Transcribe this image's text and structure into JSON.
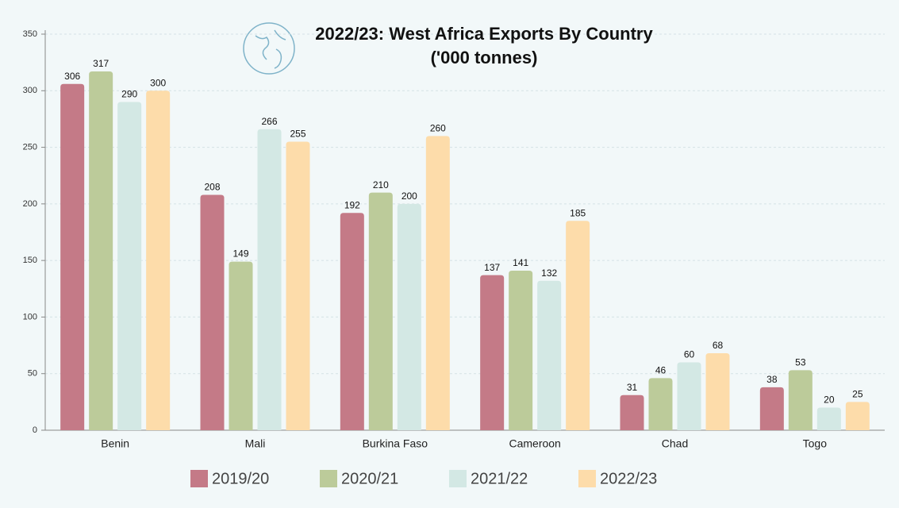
{
  "chart_data": {
    "type": "bar",
    "title": "2022/23: West Africa Exports By Country ('000 tonnes)",
    "categories": [
      "Benin",
      "Mali",
      "Burkina Faso",
      "Cameroon",
      "Chad",
      "Togo"
    ],
    "series": [
      {
        "name": "2019/20",
        "color": "#c47a87",
        "values": [
          306,
          208,
          192,
          137,
          31,
          38
        ]
      },
      {
        "name": "2020/21",
        "color": "#bccb9a",
        "values": [
          317,
          149,
          210,
          141,
          46,
          53
        ]
      },
      {
        "name": "2021/22",
        "color": "#d3e8e4",
        "values": [
          290,
          266,
          200,
          132,
          60,
          20
        ]
      },
      {
        "name": "2022/23",
        "color": "#fddcaa",
        "values": [
          300,
          255,
          260,
          185,
          68,
          25
        ]
      }
    ],
    "ylim": [
      0,
      350
    ],
    "yticks": [
      0,
      50,
      100,
      150,
      200,
      250,
      300,
      350
    ],
    "grid": true,
    "legend": "bottom"
  }
}
